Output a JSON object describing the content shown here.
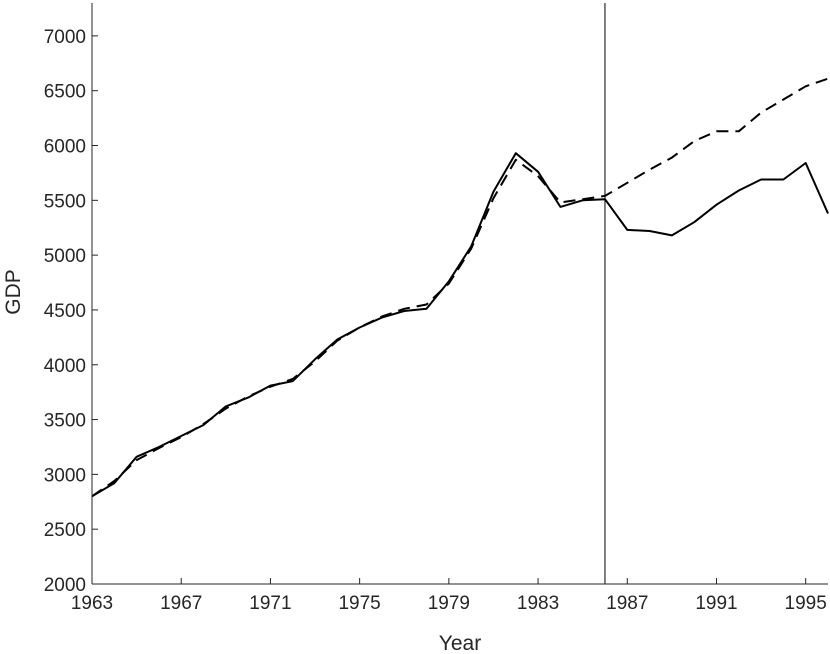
{
  "chart_data": {
    "type": "line",
    "title": "",
    "xlabel": "Year",
    "ylabel": "GDP",
    "xlim": [
      1963,
      1996
    ],
    "ylim": [
      2000,
      7300
    ],
    "xticks": [
      1963,
      1967,
      1971,
      1975,
      1979,
      1983,
      1987,
      1991,
      1995
    ],
    "xtick_labels": [
      "1963",
      "1967",
      "1971",
      "1975",
      "1979",
      "1983",
      "1987",
      "1991",
      "1995"
    ],
    "yticks": [
      2000,
      2500,
      3000,
      3500,
      4000,
      4500,
      5000,
      5500,
      6000,
      6500,
      7000
    ],
    "ytick_labels": [
      "2000",
      "2500",
      "3000",
      "3500",
      "4000",
      "4500",
      "5000",
      "5500",
      "6000",
      "6500",
      "7000"
    ],
    "grid": false,
    "legend": "none",
    "vertical_line_x": 1986,
    "series": [
      {
        "style": "solid",
        "color": "#000000",
        "x": [
          1963,
          1964,
          1965,
          1966,
          1967,
          1968,
          1969,
          1970,
          1971,
          1972,
          1973,
          1974,
          1975,
          1976,
          1977,
          1978,
          1979,
          1980,
          1981,
          1982,
          1983,
          1984,
          1985,
          1986,
          1987,
          1988,
          1989,
          1990,
          1991,
          1992,
          1993,
          1994,
          1995,
          1996
        ],
        "y": [
          2800,
          2920,
          3160,
          3250,
          3350,
          3450,
          3620,
          3700,
          3810,
          3850,
          4050,
          4230,
          4340,
          4430,
          4490,
          4510,
          4760,
          5080,
          5580,
          5930,
          5760,
          5440,
          5500,
          5510,
          5230,
          5220,
          5180,
          5300,
          5460,
          5590,
          5690,
          5690,
          5840,
          5380
        ]
      },
      {
        "style": "dashed",
        "color": "#000000",
        "x": [
          1963,
          1964,
          1965,
          1966,
          1967,
          1968,
          1969,
          1970,
          1971,
          1972,
          1973,
          1974,
          1975,
          1976,
          1977,
          1978,
          1979,
          1980,
          1981,
          1982,
          1983,
          1984,
          1985,
          1986,
          1987,
          1988,
          1989,
          1990,
          1991,
          1992,
          1993,
          1994,
          1995,
          1996
        ],
        "y": [
          2800,
          2940,
          3130,
          3240,
          3340,
          3460,
          3600,
          3710,
          3800,
          3870,
          4030,
          4220,
          4340,
          4440,
          4510,
          4550,
          4740,
          5060,
          5520,
          5870,
          5720,
          5480,
          5510,
          5540,
          5660,
          5780,
          5890,
          6040,
          6130,
          6130,
          6300,
          6420,
          6540,
          6610
        ]
      }
    ]
  }
}
